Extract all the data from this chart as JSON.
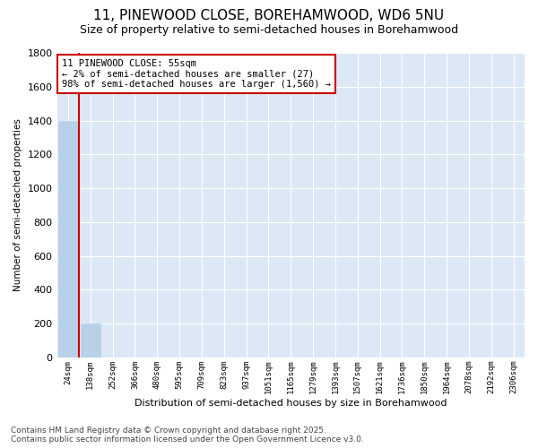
{
  "title": "11, PINEWOOD CLOSE, BOREHAMWOOD, WD6 5NU",
  "subtitle": "Size of property relative to semi-detached houses in Borehamwood",
  "xlabel": "Distribution of semi-detached houses by size in Borehamwood",
  "ylabel": "Number of semi-detached properties",
  "bar_labels": [
    "24sqm",
    "138sqm",
    "252sqm",
    "366sqm",
    "480sqm",
    "595sqm",
    "709sqm",
    "823sqm",
    "937sqm",
    "1051sqm",
    "1165sqm",
    "1279sqm",
    "1393sqm",
    "1507sqm",
    "1621sqm",
    "1736sqm",
    "1850sqm",
    "1964sqm",
    "2078sqm",
    "2192sqm",
    "2306sqm"
  ],
  "bar_values": [
    1400,
    200,
    0,
    0,
    0,
    0,
    0,
    0,
    0,
    0,
    0,
    0,
    0,
    0,
    0,
    0,
    0,
    0,
    0,
    0,
    0
  ],
  "bar_color": "#b8d0e8",
  "bar_edge_color": "#b8d0e8",
  "ylim": [
    0,
    1800
  ],
  "yticks": [
    0,
    200,
    400,
    600,
    800,
    1000,
    1200,
    1400,
    1600,
    1800
  ],
  "property_line_color": "#cc0000",
  "annotation_text": "11 PINEWOOD CLOSE: 55sqm\n← 2% of semi-detached houses are smaller (27)\n98% of semi-detached houses are larger (1,560) →",
  "annotation_box_color": "#cc0000",
  "background_color": "#dce8f5",
  "footer_text": "Contains HM Land Registry data © Crown copyright and database right 2025.\nContains public sector information licensed under the Open Government Licence v3.0.",
  "title_fontsize": 11,
  "subtitle_fontsize": 9,
  "annotation_fontsize": 7.5,
  "footer_fontsize": 6.5
}
